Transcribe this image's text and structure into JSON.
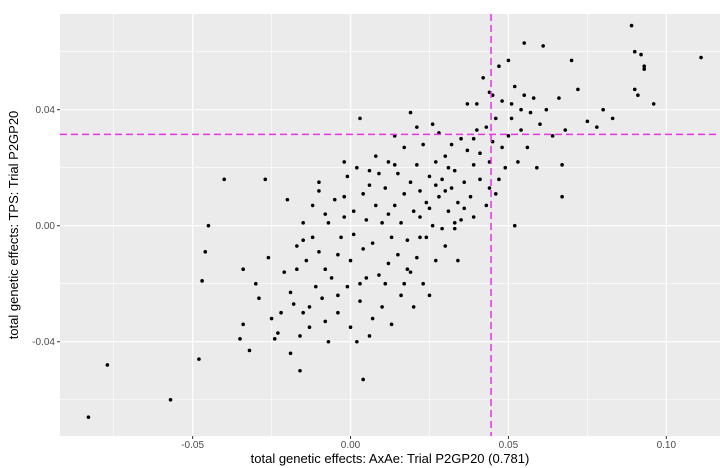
{
  "chart_data": {
    "type": "scatter",
    "title": "",
    "xlabel": "total genetic effects: AxAe: Trial P2GP20 (0.781)",
    "ylabel": "total genetic effects: TPS: Trial P2GP20",
    "xlim": [
      -0.092,
      0.117
    ],
    "ylim": [
      -0.0725,
      0.073
    ],
    "x_ticks": [
      -0.05,
      0.0,
      0.05,
      0.1
    ],
    "x_tick_labels": [
      "-0.05",
      "0.00",
      "0.05",
      "0.10"
    ],
    "y_ticks": [
      -0.04,
      0.0,
      0.04
    ],
    "y_tick_labels": [
      "-0.04",
      "0.00",
      "0.04"
    ],
    "x_minor": [
      -0.075,
      -0.025,
      0.025,
      0.075
    ],
    "y_minor": [
      -0.06,
      -0.02,
      0.02,
      0.06
    ],
    "grid": true,
    "legend": "none",
    "colors": {
      "panel": "#ebebeb",
      "grid": "#ffffff",
      "points": "#000000",
      "reference": "#e633e6"
    },
    "reference_lines": {
      "vertical_x": 0.0445,
      "horizontal_y": 0.0315
    },
    "points": [
      [
        -0.083,
        -0.066
      ],
      [
        -0.077,
        -0.048
      ],
      [
        -0.057,
        -0.06
      ],
      [
        -0.048,
        -0.046
      ],
      [
        -0.047,
        -0.019
      ],
      [
        -0.046,
        -0.009
      ],
      [
        -0.045,
        0.0
      ],
      [
        -0.04,
        0.016
      ],
      [
        -0.035,
        -0.039
      ],
      [
        -0.034,
        -0.034
      ],
      [
        -0.034,
        -0.015
      ],
      [
        -0.032,
        -0.043
      ],
      [
        -0.03,
        -0.02
      ],
      [
        -0.029,
        -0.025
      ],
      [
        -0.027,
        0.016
      ],
      [
        -0.026,
        -0.011
      ],
      [
        -0.025,
        -0.032
      ],
      [
        -0.024,
        -0.039
      ],
      [
        -0.023,
        -0.037
      ],
      [
        -0.022,
        -0.03
      ],
      [
        -0.021,
        -0.016
      ],
      [
        -0.02,
        0.009
      ],
      [
        -0.019,
        -0.044
      ],
      [
        -0.019,
        -0.023
      ],
      [
        -0.018,
        -0.027
      ],
      [
        -0.017,
        -0.015
      ],
      [
        -0.017,
        -0.007
      ],
      [
        -0.016,
        -0.05
      ],
      [
        -0.016,
        -0.038
      ],
      [
        -0.015,
        -0.005
      ],
      [
        -0.015,
        0.001
      ],
      [
        -0.014,
        -0.012
      ],
      [
        -0.013,
        -0.035
      ],
      [
        -0.013,
        -0.028
      ],
      [
        -0.012,
        -0.004
      ],
      [
        -0.012,
        0.007
      ],
      [
        -0.011,
        -0.021
      ],
      [
        -0.01,
        -0.009
      ],
      [
        -0.01,
        0.015
      ],
      [
        -0.009,
        -0.025
      ],
      [
        -0.008,
        -0.033
      ],
      [
        -0.008,
        -0.015
      ],
      [
        -0.008,
        0.004
      ],
      [
        -0.007,
        -0.04
      ],
      [
        -0.007,
        0.001
      ],
      [
        -0.006,
        -0.018
      ],
      [
        -0.005,
        0.009
      ],
      [
        -0.004,
        -0.03
      ],
      [
        -0.004,
        -0.01
      ],
      [
        -0.003,
        -0.004
      ],
      [
        -0.002,
        0.003
      ],
      [
        -0.002,
        0.01
      ],
      [
        -0.001,
        -0.021
      ],
      [
        -0.001,
        0.017
      ],
      [
        0.0,
        -0.012
      ],
      [
        0.0,
        -0.035
      ],
      [
        0.001,
        -0.003
      ],
      [
        0.001,
        0.005
      ],
      [
        0.002,
        -0.04
      ],
      [
        0.002,
        0.02
      ],
      [
        0.003,
        -0.026
      ],
      [
        0.003,
        0.037
      ],
      [
        0.004,
        -0.053
      ],
      [
        0.004,
        -0.008
      ],
      [
        0.004,
        0.011
      ],
      [
        0.005,
        -0.018
      ],
      [
        0.005,
        0.002
      ],
      [
        0.006,
        0.014
      ],
      [
        0.007,
        -0.032
      ],
      [
        0.007,
        -0.006
      ],
      [
        0.008,
        0.007
      ],
      [
        0.009,
        -0.017
      ],
      [
        0.009,
        0.018
      ],
      [
        0.01,
        -0.028
      ],
      [
        0.01,
        0.001
      ],
      [
        0.011,
        0.013
      ],
      [
        0.012,
        -0.013
      ],
      [
        0.012,
        0.022
      ],
      [
        0.013,
        -0.034
      ],
      [
        0.013,
        -0.004
      ],
      [
        0.014,
        0.007
      ],
      [
        0.014,
        0.031
      ],
      [
        0.015,
        -0.01
      ],
      [
        0.015,
        0.018
      ],
      [
        0.016,
        -0.024
      ],
      [
        0.016,
        0.001
      ],
      [
        0.017,
        0.011
      ],
      [
        0.017,
        0.027
      ],
      [
        0.018,
        -0.015
      ],
      [
        0.018,
        -0.005
      ],
      [
        0.019,
        0.015
      ],
      [
        0.019,
        0.039
      ],
      [
        0.02,
        -0.028
      ],
      [
        0.02,
        0.005
      ],
      [
        0.021,
        -0.011
      ],
      [
        0.021,
        0.021
      ],
      [
        0.022,
        0.003
      ],
      [
        0.022,
        0.012
      ],
      [
        0.023,
        -0.02
      ],
      [
        0.023,
        0.028
      ],
      [
        0.024,
        -0.004
      ],
      [
        0.024,
        0.008
      ],
      [
        0.025,
        -0.024
      ],
      [
        0.025,
        0.017
      ],
      [
        0.026,
        0.0
      ],
      [
        0.027,
        0.022
      ],
      [
        0.027,
        -0.012
      ],
      [
        0.028,
        0.01
      ],
      [
        0.028,
        0.032
      ],
      [
        0.029,
        -0.001
      ],
      [
        0.029,
        0.016
      ],
      [
        0.03,
        -0.007
      ],
      [
        0.03,
        0.024
      ],
      [
        0.031,
        0.005
      ],
      [
        0.032,
        0.013
      ],
      [
        0.032,
        0.028
      ],
      [
        0.033,
        -0.001
      ],
      [
        0.033,
        0.019
      ],
      [
        0.034,
        0.008
      ],
      [
        0.035,
        0.03
      ],
      [
        0.035,
        0.002
      ],
      [
        0.036,
        0.015
      ],
      [
        0.037,
        0.026
      ],
      [
        0.037,
        0.042
      ],
      [
        0.038,
        0.01
      ],
      [
        0.039,
        0.021
      ],
      [
        0.039,
        0.003
      ],
      [
        0.04,
        0.033
      ],
      [
        0.041,
        0.016
      ],
      [
        0.041,
        0.025
      ],
      [
        0.042,
        0.051
      ],
      [
        0.043,
        0.007
      ],
      [
        0.043,
        0.034
      ],
      [
        0.044,
        0.022
      ],
      [
        0.045,
        0.029
      ],
      [
        0.045,
        0.045
      ],
      [
        0.046,
        0.037
      ],
      [
        0.047,
        0.016
      ],
      [
        0.048,
        0.027
      ],
      [
        0.048,
        0.043
      ],
      [
        0.049,
        0.02
      ],
      [
        0.05,
        0.031
      ],
      [
        0.05,
        0.057
      ],
      [
        0.051,
        0.037
      ],
      [
        0.052,
        0.048
      ],
      [
        0.052,
        0.0
      ],
      [
        0.053,
        0.022
      ],
      [
        0.054,
        0.033
      ],
      [
        0.054,
        0.04
      ],
      [
        0.055,
        0.063
      ],
      [
        0.056,
        0.027
      ],
      [
        0.057,
        0.039
      ],
      [
        0.058,
        0.044
      ],
      [
        0.059,
        0.02
      ],
      [
        0.06,
        0.035
      ],
      [
        0.061,
        0.062
      ],
      [
        0.062,
        0.04
      ],
      [
        0.064,
        0.031
      ],
      [
        0.066,
        0.044
      ],
      [
        0.067,
        0.021
      ],
      [
        0.067,
        0.01
      ],
      [
        0.068,
        0.033
      ],
      [
        0.07,
        0.057
      ],
      [
        0.072,
        0.047
      ],
      [
        0.075,
        0.036
      ],
      [
        0.078,
        0.034
      ],
      [
        0.08,
        0.04
      ],
      [
        0.083,
        0.037
      ],
      [
        0.089,
        0.069
      ],
      [
        0.09,
        0.047
      ],
      [
        0.09,
        0.06
      ],
      [
        0.091,
        0.045
      ],
      [
        0.092,
        0.059
      ],
      [
        0.093,
        0.054
      ],
      [
        0.093,
        0.055
      ],
      [
        0.096,
        0.042
      ],
      [
        0.111,
        0.058
      ],
      [
        -0.002,
        0.022
      ],
      [
        0.006,
        0.019
      ],
      [
        0.011,
        -0.02
      ],
      [
        0.019,
        -0.016
      ],
      [
        0.026,
        0.035
      ],
      [
        0.034,
        -0.012
      ],
      [
        0.04,
        0.042
      ],
      [
        0.046,
        0.011
      ],
      [
        0.044,
        0.013
      ],
      [
        0.047,
        0.055
      ],
      [
        0.03,
        0.012
      ],
      [
        0.021,
        0.034
      ],
      [
        0.008,
        0.024
      ],
      [
        0.014,
        0.021
      ],
      [
        0.036,
        0.006
      ],
      [
        0.044,
        0.046
      ],
      [
        0.051,
        0.042
      ],
      [
        0.055,
        0.045
      ],
      [
        -0.01,
        0.012
      ],
      [
        0.003,
        -0.02
      ],
      [
        0.017,
        -0.02
      ],
      [
        0.022,
        -0.004
      ],
      [
        0.031,
        0.02
      ],
      [
        0.039,
        0.03
      ],
      [
        -0.004,
        -0.024
      ],
      [
        0.012,
        0.004
      ],
      [
        0.025,
        0.006
      ],
      [
        0.033,
        0.001
      ],
      [
        0.006,
        -0.038
      ],
      [
        -0.015,
        -0.03
      ],
      [
        0.027,
        0.014
      ]
    ]
  }
}
